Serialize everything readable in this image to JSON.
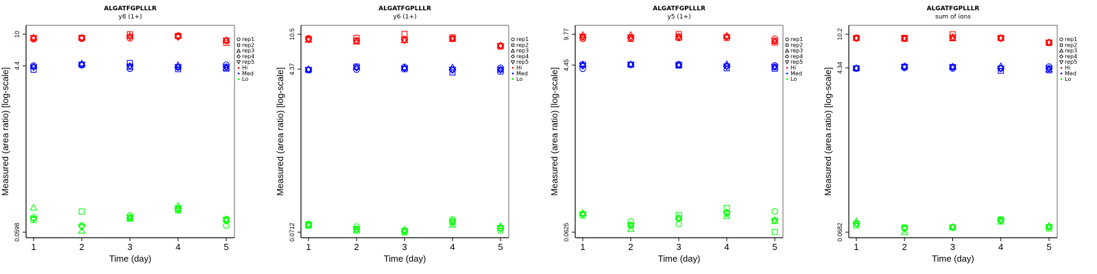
{
  "chart_data": [
    {
      "type": "scatter",
      "title": "ALGATFGPLLLR",
      "subtitle": "y8 (1+)",
      "xlabel": "Time (day)",
      "ylabel": "Measured (area ratio) [log-scale]",
      "yscale": "log",
      "x_ticks": [
        "1",
        "2",
        "3",
        "4",
        "5"
      ],
      "y_ticks": [
        {
          "value": 10,
          "label": "10"
        },
        {
          "value": 4.4,
          "label": "4.4"
        },
        {
          "value": 0.0598,
          "label": "0.0598"
        }
      ],
      "ylim": [
        0.0555,
        12.0
      ],
      "xlim": [
        0.85,
        5.15
      ],
      "legend": {
        "placement": "right",
        "entries": [
          {
            "label": "rep1",
            "symbol": "circle"
          },
          {
            "label": "rep2",
            "symbol": "square"
          },
          {
            "label": "rep3",
            "symbol": "triangle-up"
          },
          {
            "label": "rep4",
            "symbol": "diamond"
          },
          {
            "label": "rep5",
            "symbol": "triangle-down"
          },
          {
            "label": "Hi",
            "symbol": "dot",
            "color": "#ff0000"
          },
          {
            "label": "Med",
            "symbol": "dot",
            "color": "#0000ff"
          },
          {
            "label": "Lo",
            "symbol": "dot",
            "color": "#00ff00"
          }
        ]
      },
      "series": [
        {
          "name": "Hi",
          "color": "#ff0000",
          "reps": [
            [
              8.8,
              8.9,
              9.0,
              9.5,
              8.5
            ],
            [
              9.0,
              9.1,
              10.0,
              9.6,
              8.0
            ],
            [
              9.2,
              9.2,
              9.6,
              9.7,
              8.6
            ],
            [
              9.0,
              9.0,
              9.4,
              9.3,
              8.4
            ],
            [
              9.1,
              9.0,
              9.3,
              9.4,
              8.5
            ]
          ]
        },
        {
          "name": "Med",
          "color": "#0000ff",
          "reps": [
            [
              4.45,
              4.5,
              4.1,
              4.25,
              4.55
            ],
            [
              4.0,
              4.55,
              4.75,
              4.05,
              4.1
            ],
            [
              4.35,
              4.7,
              4.3,
              4.5,
              4.2
            ],
            [
              4.3,
              4.5,
              4.4,
              4.25,
              4.3
            ],
            [
              4.25,
              4.55,
              4.35,
              4.3,
              4.3
            ]
          ]
        },
        {
          "name": "Lo",
          "color": "#00ff00",
          "reps": [
            [
              0.088,
              0.071,
              0.092,
              0.108,
              0.071
            ],
            [
              0.082,
              0.102,
              0.085,
              0.105,
              0.083
            ],
            [
              0.113,
              0.062,
              0.086,
              0.118,
              0.084
            ],
            [
              0.085,
              0.07,
              0.087,
              0.11,
              0.08
            ],
            [
              0.084,
              0.068,
              0.088,
              0.112,
              0.082
            ]
          ]
        }
      ]
    },
    {
      "type": "scatter",
      "title": "ALGATFGPLLLR",
      "subtitle": "y6 (1+)",
      "xlabel": "Time (day)",
      "ylabel": "Measured (area ratio) [log-scale]",
      "yscale": "log",
      "x_ticks": [
        "1",
        "2",
        "3",
        "4",
        "5"
      ],
      "y_ticks": [
        {
          "value": 10.5,
          "label": "10.5"
        },
        {
          "value": 4.37,
          "label": "4.37"
        },
        {
          "value": 0.0712,
          "label": "0.0712"
        }
      ],
      "ylim": [
        0.0665,
        12.4
      ],
      "xlim": [
        0.85,
        5.15
      ],
      "legend": {
        "placement": "right",
        "entries": [
          {
            "label": "rep1",
            "symbol": "circle"
          },
          {
            "label": "rep2",
            "symbol": "square"
          },
          {
            "label": "rep3",
            "symbol": "triangle-up"
          },
          {
            "label": "rep4",
            "symbol": "diamond"
          },
          {
            "label": "rep5",
            "symbol": "triangle-down"
          },
          {
            "label": "Hi",
            "symbol": "dot",
            "color": "#ff0000"
          },
          {
            "label": "Med",
            "symbol": "dot",
            "color": "#0000ff"
          },
          {
            "label": "Lo",
            "symbol": "dot",
            "color": "#00ff00"
          }
        ]
      },
      "series": [
        {
          "name": "Hi",
          "color": "#ff0000",
          "reps": [
            [
              9.5,
              8.8,
              9.0,
              9.4,
              7.9
            ],
            [
              9.3,
              9.6,
              10.6,
              9.7,
              7.7
            ],
            [
              9.1,
              8.7,
              9.0,
              9.3,
              7.9
            ],
            [
              9.3,
              9.0,
              9.2,
              9.4,
              7.8
            ],
            [
              9.2,
              8.9,
              9.1,
              9.4,
              7.8
            ]
          ]
        },
        {
          "name": "Med",
          "color": "#0000ff",
          "reps": [
            [
              4.3,
              4.3,
              4.6,
              4.3,
              4.5
            ],
            [
              4.25,
              4.65,
              4.35,
              4.0,
              4.1
            ],
            [
              4.35,
              4.6,
              4.5,
              4.55,
              4.3
            ],
            [
              4.3,
              4.5,
              4.45,
              4.25,
              4.3
            ],
            [
              4.28,
              4.52,
              4.42,
              4.3,
              4.3
            ]
          ]
        },
        {
          "name": "Lo",
          "color": "#00ff00",
          "reps": [
            [
              0.088,
              0.082,
              0.073,
              0.098,
              0.074
            ],
            [
              0.084,
              0.077,
              0.071,
              0.093,
              0.079
            ],
            [
              0.086,
              0.074,
              0.076,
              0.086,
              0.083
            ],
            [
              0.085,
              0.077,
              0.073,
              0.094,
              0.079
            ],
            [
              0.086,
              0.076,
              0.074,
              0.09,
              0.078
            ]
          ]
        }
      ]
    },
    {
      "type": "scatter",
      "title": "ALGATFGPLLLR",
      "subtitle": "y5 (1+)",
      "xlabel": "Time (day)",
      "ylabel": "Measured (area ratio) [log-scale]",
      "yscale": "log",
      "x_ticks": [
        "1",
        "2",
        "3",
        "4",
        "5"
      ],
      "y_ticks": [
        {
          "value": 9.77,
          "label": "9.77"
        },
        {
          "value": 4.45,
          "label": "4.45"
        },
        {
          "value": 0.0625,
          "label": "0.0625"
        }
      ],
      "ylim": [
        0.058,
        11.3
      ],
      "xlim": [
        0.85,
        5.15
      ],
      "legend": {
        "placement": "right",
        "entries": [
          {
            "label": "rep1",
            "symbol": "circle"
          },
          {
            "label": "rep2",
            "symbol": "square"
          },
          {
            "label": "rep3",
            "symbol": "triangle-up"
          },
          {
            "label": "rep4",
            "symbol": "diamond"
          },
          {
            "label": "rep5",
            "symbol": "triangle-down"
          },
          {
            "label": "Hi",
            "symbol": "dot",
            "color": "#ff0000"
          },
          {
            "label": "Med",
            "symbol": "dot",
            "color": "#0000ff"
          },
          {
            "label": "Lo",
            "symbol": "dot",
            "color": "#00ff00"
          }
        ]
      },
      "series": [
        {
          "name": "Hi",
          "color": "#ff0000",
          "reps": [
            [
              8.7,
              8.8,
              8.9,
              9.2,
              8.7
            ],
            [
              9.0,
              8.7,
              9.8,
              8.9,
              7.9
            ],
            [
              9.6,
              9.6,
              9.0,
              9.4,
              8.2
            ],
            [
              9.1,
              9.0,
              9.2,
              9.1,
              8.2
            ],
            [
              9.2,
              9.0,
              9.2,
              9.1,
              8.3
            ]
          ]
        },
        {
          "name": "Med",
          "color": "#0000ff",
          "reps": [
            [
              4.05,
              4.5,
              4.55,
              4.35,
              4.4
            ],
            [
              4.5,
              4.5,
              4.4,
              4.1,
              4.05
            ],
            [
              4.55,
              4.55,
              4.45,
              4.55,
              4.2
            ],
            [
              4.35,
              4.5,
              4.45,
              4.3,
              4.25
            ],
            [
              4.35,
              4.5,
              4.45,
              4.3,
              4.25
            ]
          ]
        },
        {
          "name": "Lo",
          "color": "#00ff00",
          "reps": [
            [
              0.1,
              0.082,
              0.077,
              0.102,
              0.106
            ],
            [
              0.096,
              0.075,
              0.097,
              0.116,
              0.063
            ],
            [
              0.102,
              0.068,
              0.09,
              0.094,
              0.083
            ],
            [
              0.099,
              0.075,
              0.088,
              0.104,
              0.085
            ],
            [
              0.098,
              0.074,
              0.089,
              0.1,
              0.084
            ]
          ]
        }
      ]
    },
    {
      "type": "scatter",
      "title": "ALGATFGPLLLR",
      "subtitle": "sum of ions",
      "xlabel": "Time (day)",
      "ylabel": "Measured (area ratio) [log-scale]",
      "yscale": "log",
      "x_ticks": [
        "1",
        "2",
        "3",
        "4",
        "5"
      ],
      "y_ticks": [
        {
          "value": 10.2,
          "label": "10.2"
        },
        {
          "value": 4.34,
          "label": "4.34"
        },
        {
          "value": 0.0682,
          "label": "0.0682"
        }
      ],
      "ylim": [
        0.0636,
        12.0
      ],
      "xlim": [
        0.85,
        5.15
      ],
      "legend": {
        "placement": "right",
        "entries": [
          {
            "label": "rep1",
            "symbol": "circle"
          },
          {
            "label": "rep2",
            "symbol": "square"
          },
          {
            "label": "rep3",
            "symbol": "triangle-up"
          },
          {
            "label": "rep4",
            "symbol": "diamond"
          },
          {
            "label": "rep5",
            "symbol": "triangle-down"
          },
          {
            "label": "Hi",
            "symbol": "dot",
            "color": "#ff0000"
          },
          {
            "label": "Med",
            "symbol": "dot",
            "color": "#0000ff"
          },
          {
            "label": "Lo",
            "symbol": "dot",
            "color": "#00ff00"
          }
        ]
      },
      "series": [
        {
          "name": "Hi",
          "color": "#ff0000",
          "reps": [
            [
              9.2,
              9.1,
              9.3,
              9.2,
              8.3
            ],
            [
              9.3,
              9.3,
              10.2,
              9.3,
              8.2
            ],
            [
              9.3,
              9.1,
              9.2,
              9.3,
              8.3
            ],
            [
              9.3,
              9.2,
              9.5,
              9.3,
              8.3
            ],
            [
              9.2,
              9.2,
              9.4,
              9.2,
              8.3
            ]
          ]
        },
        {
          "name": "Med",
          "color": "#0000ff",
          "reps": [
            [
              4.3,
              4.35,
              4.3,
              4.3,
              4.5
            ],
            [
              4.3,
              4.5,
              4.45,
              4.05,
              4.1
            ],
            [
              4.35,
              4.55,
              4.5,
              4.55,
              4.2
            ],
            [
              4.3,
              4.45,
              4.45,
              4.3,
              4.3
            ],
            [
              4.3,
              4.45,
              4.45,
              4.3,
              4.3
            ]
          ]
        },
        {
          "name": "Lo",
          "color": "#00ff00",
          "reps": [
            [
              0.085,
              0.076,
              0.077,
              0.093,
              0.078
            ],
            [
              0.081,
              0.077,
              0.077,
              0.094,
              0.075
            ],
            [
              0.09,
              0.068,
              0.078,
              0.089,
              0.08
            ],
            [
              0.085,
              0.075,
              0.077,
              0.092,
              0.078
            ],
            [
              0.084,
              0.074,
              0.077,
              0.091,
              0.078
            ]
          ]
        }
      ]
    }
  ]
}
